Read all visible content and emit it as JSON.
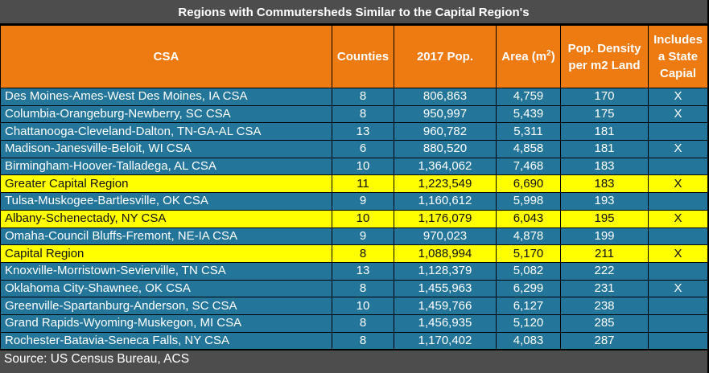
{
  "title": "Regions with Commutersheds Similar to the Capital Region's",
  "columns": {
    "csa": "CSA",
    "counties": "Counties",
    "pop": "2017 Pop.",
    "area_prefix": "Area (m",
    "area_sup": "2",
    "area_suffix": ")",
    "density": "Pop. Density per m2 Land",
    "capital": "Includes a State Capial"
  },
  "colors": {
    "header": "#ee7a12",
    "row": "#237599",
    "highlight": "#ffff00",
    "frame": "#4d4d4d"
  },
  "rows": [
    {
      "csa": "Des Moines-Ames-West Des Moines, IA CSA",
      "counties": "8",
      "pop": "806,863",
      "area": "4,759",
      "density": "170",
      "capital": "X",
      "highlight": false
    },
    {
      "csa": "Columbia-Orangeburg-Newberry, SC CSA",
      "counties": "8",
      "pop": "950,997",
      "area": "5,439",
      "density": "175",
      "capital": "X",
      "highlight": false
    },
    {
      "csa": "Chattanooga-Cleveland-Dalton, TN-GA-AL CSA",
      "counties": "13",
      "pop": "960,782",
      "area": "5,311",
      "density": "181",
      "capital": "",
      "highlight": false
    },
    {
      "csa": "Madison-Janesville-Beloit, WI CSA",
      "counties": "6",
      "pop": "880,520",
      "area": "4,858",
      "density": "181",
      "capital": "X",
      "highlight": false
    },
    {
      "csa": "Birmingham-Hoover-Talladega, AL CSA",
      "counties": "10",
      "pop": "1,364,062",
      "area": "7,468",
      "density": "183",
      "capital": "",
      "highlight": false
    },
    {
      "csa": "Greater Capital Region",
      "counties": "11",
      "pop": "1,223,549",
      "area": "6,690",
      "density": "183",
      "capital": "X",
      "highlight": true
    },
    {
      "csa": "Tulsa-Muskogee-Bartlesville, OK CSA",
      "counties": "9",
      "pop": "1,160,612",
      "area": "5,998",
      "density": "193",
      "capital": "",
      "highlight": false
    },
    {
      "csa": "Albany-Schenectady, NY CSA",
      "counties": "10",
      "pop": "1,176,079",
      "area": "6,043",
      "density": "195",
      "capital": "X",
      "highlight": true
    },
    {
      "csa": "Omaha-Council Bluffs-Fremont, NE-IA CSA",
      "counties": "9",
      "pop": "970,023",
      "area": "4,878",
      "density": "199",
      "capital": "",
      "highlight": false
    },
    {
      "csa": "Capital Region",
      "counties": "8",
      "pop": "1,088,994",
      "area": "5,170",
      "density": "211",
      "capital": "X",
      "highlight": true
    },
    {
      "csa": "Knoxville-Morristown-Sevierville, TN CSA",
      "counties": "13",
      "pop": "1,128,379",
      "area": "5,082",
      "density": "222",
      "capital": "",
      "highlight": false
    },
    {
      "csa": "Oklahoma City-Shawnee, OK CSA",
      "counties": "8",
      "pop": "1,455,963",
      "area": "6,299",
      "density": "231",
      "capital": "X",
      "highlight": false
    },
    {
      "csa": "Greenville-Spartanburg-Anderson, SC CSA",
      "counties": "10",
      "pop": "1,459,766",
      "area": "6,127",
      "density": "238",
      "capital": "",
      "highlight": false
    },
    {
      "csa": "Grand Rapids-Wyoming-Muskegon, MI CSA",
      "counties": "8",
      "pop": "1,456,935",
      "area": "5,120",
      "density": "285",
      "capital": "",
      "highlight": false
    },
    {
      "csa": "Rochester-Batavia-Seneca Falls, NY CSA",
      "counties": "8",
      "pop": "1,170,402",
      "area": "4,083",
      "density": "287",
      "capital": "",
      "highlight": false
    }
  ],
  "footer": "Source: US Census Bureau, ACS"
}
